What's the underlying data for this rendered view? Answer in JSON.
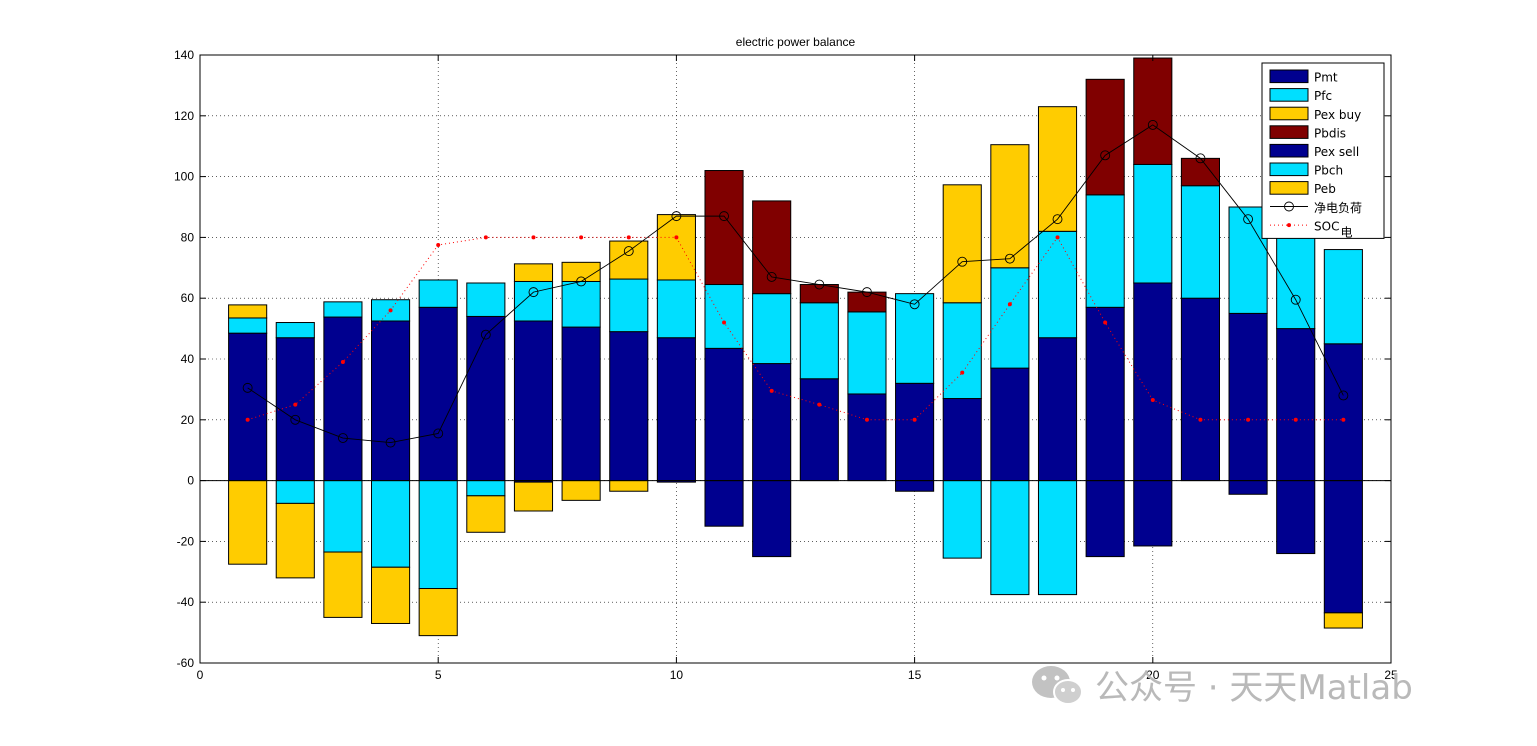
{
  "chart_data": {
    "type": "bar",
    "title": "electric power balance",
    "xlabel": "",
    "ylabel": "",
    "xlim": [
      0,
      25
    ],
    "ylim": [
      -60,
      140
    ],
    "xticks": [
      0,
      5,
      10,
      15,
      20,
      25
    ],
    "yticks": [
      -60,
      -40,
      -20,
      0,
      20,
      40,
      60,
      80,
      100,
      120,
      140
    ],
    "grid": true,
    "legend_position": "top-right",
    "x": [
      1,
      2,
      3,
      4,
      5,
      6,
      7,
      8,
      9,
      10,
      11,
      12,
      13,
      14,
      15,
      16,
      17,
      18,
      19,
      20,
      21,
      22,
      23,
      24
    ],
    "positive_series": [
      {
        "name": "Pmt",
        "color": "#00008f",
        "values": [
          48.5,
          47,
          53.8,
          52.5,
          57,
          54,
          52.5,
          50.5,
          49,
          47,
          43.5,
          38.5,
          33.5,
          28.5,
          32,
          27,
          37,
          47,
          57,
          65,
          60,
          55,
          50,
          45
        ]
      },
      {
        "name": "Pfc",
        "color": "#00dfff",
        "values": [
          5,
          5,
          5,
          7,
          9,
          11,
          13,
          15,
          17.3,
          19,
          21,
          23,
          25,
          27,
          29.5,
          31.5,
          33,
          35,
          37,
          39,
          37,
          35,
          32,
          31
        ]
      },
      {
        "name": "Pex buy",
        "color": "#ffcc00",
        "values": [
          4.3,
          0,
          0,
          0,
          0,
          0,
          5.8,
          6.3,
          12.5,
          21.5,
          0,
          0,
          0,
          0,
          0,
          38.8,
          40.5,
          41,
          0,
          0,
          0,
          0,
          0,
          0
        ]
      },
      {
        "name": "Pbdis",
        "color": "#800000",
        "values": [
          0,
          0,
          0,
          0,
          0,
          0,
          0,
          0,
          0,
          0,
          37.5,
          30.5,
          6,
          6.5,
          0,
          0,
          0,
          0,
          38,
          35,
          9,
          0,
          0,
          0
        ]
      }
    ],
    "negative_series": [
      {
        "name": "Pex sell",
        "color": "#00008f",
        "values": [
          0,
          0,
          0,
          0,
          0,
          0,
          -0.5,
          0,
          0,
          -0.5,
          -15,
          -25,
          0,
          0,
          -3.5,
          0,
          0,
          0,
          -25,
          -21.5,
          0,
          -4.5,
          -24,
          -43.5
        ]
      },
      {
        "name": "Pbch",
        "color": "#00dfff",
        "values": [
          0,
          -7.5,
          -23.5,
          -28.5,
          -35.5,
          -5,
          0,
          0,
          0,
          0,
          0,
          0,
          0,
          0,
          0,
          -25.5,
          -37.5,
          -37.5,
          0,
          0,
          0,
          0,
          0,
          0
        ]
      },
      {
        "name": "Peb",
        "color": "#ffcc00",
        "values": [
          -27.5,
          -24.5,
          -21.5,
          -18.5,
          -15.5,
          -12,
          -9.5,
          -6.5,
          -3.5,
          0,
          0,
          0,
          0,
          0,
          0,
          0,
          0,
          0,
          0,
          0,
          0,
          0,
          0,
          -5
        ]
      }
    ],
    "lines": [
      {
        "name": "净电负荷",
        "color": "#000000",
        "marker": "circle",
        "style": "solid",
        "values": [
          30.5,
          20,
          14,
          12.5,
          15.5,
          48,
          62,
          65.5,
          75.5,
          87,
          87,
          67,
          64.5,
          62,
          58,
          72,
          73,
          86,
          107,
          117,
          106,
          86,
          59.5,
          28
        ]
      },
      {
        "name": "SOC",
        "name_subscript": "电",
        "color": "#ff0000",
        "marker": "dot",
        "style": "dotted",
        "values": [
          20,
          25,
          39,
          56,
          77.5,
          80,
          80,
          80,
          80,
          80,
          52,
          29.5,
          25,
          20,
          20,
          35.5,
          58,
          80,
          52,
          26.5,
          20,
          20,
          20,
          20
        ]
      }
    ]
  },
  "watermark": {
    "text": "公众号 · 天天Matlab",
    "icon": "wechat-icon"
  }
}
